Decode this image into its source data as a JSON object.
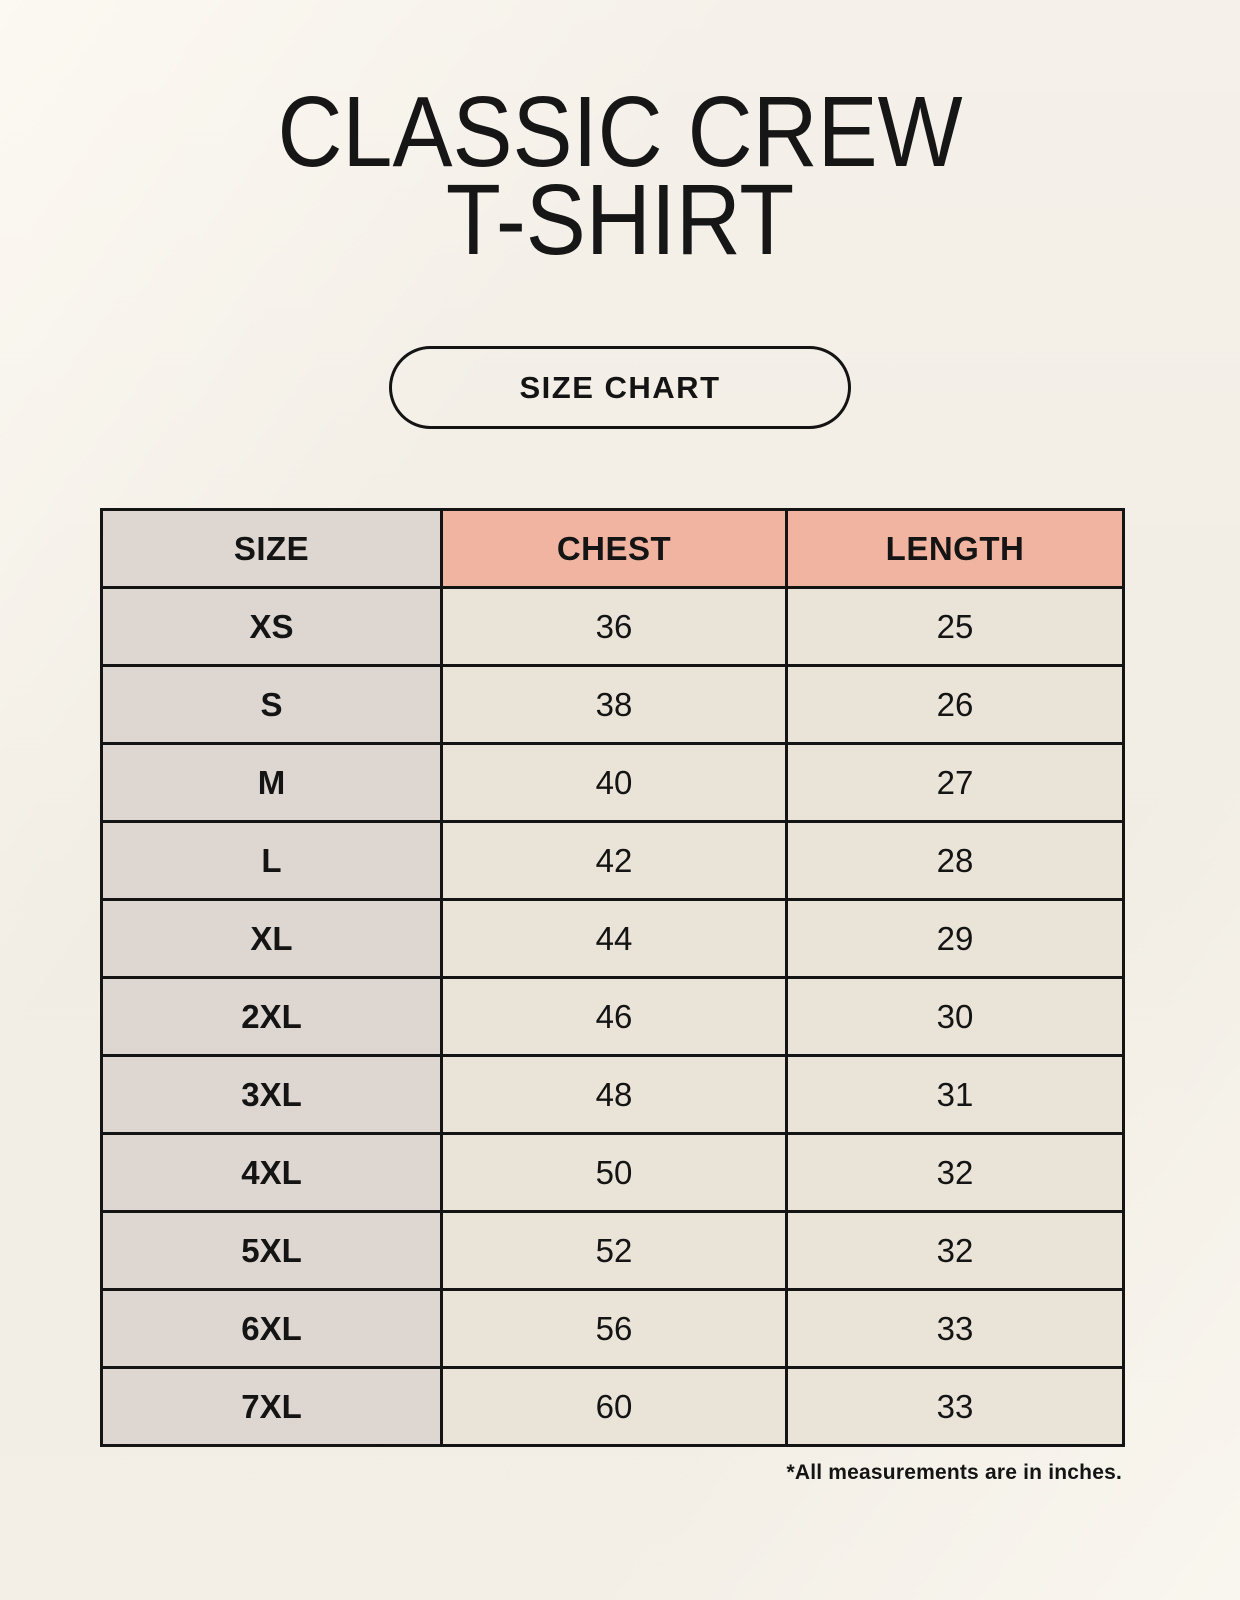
{
  "title": {
    "line1": "CLASSIC CREW",
    "line2": "T-SHIRT"
  },
  "badge": {
    "label": "SIZE CHART"
  },
  "chart_data": {
    "type": "table",
    "title": "CLASSIC CREW T-SHIRT",
    "subtitle": "SIZE CHART",
    "columns": [
      "SIZE",
      "CHEST",
      "LENGTH"
    ],
    "rows": [
      [
        "XS",
        "36",
        "25"
      ],
      [
        "S",
        "38",
        "26"
      ],
      [
        "M",
        "40",
        "27"
      ],
      [
        "L",
        "42",
        "28"
      ],
      [
        "XL",
        "44",
        "29"
      ],
      [
        "2XL",
        "46",
        "30"
      ],
      [
        "3XL",
        "48",
        "31"
      ],
      [
        "4XL",
        "50",
        "32"
      ],
      [
        "5XL",
        "52",
        "32"
      ],
      [
        "6XL",
        "56",
        "33"
      ],
      [
        "7XL",
        "60",
        "33"
      ]
    ],
    "units": "inches"
  },
  "footnote": "*All measurements are in inches.",
  "colors": {
    "background": "#f2eee6",
    "header_accent": "#f1b4a1",
    "size_column": "#ded7d1",
    "data_cell": "#eae3d8",
    "border": "#141414",
    "text": "#141414"
  }
}
